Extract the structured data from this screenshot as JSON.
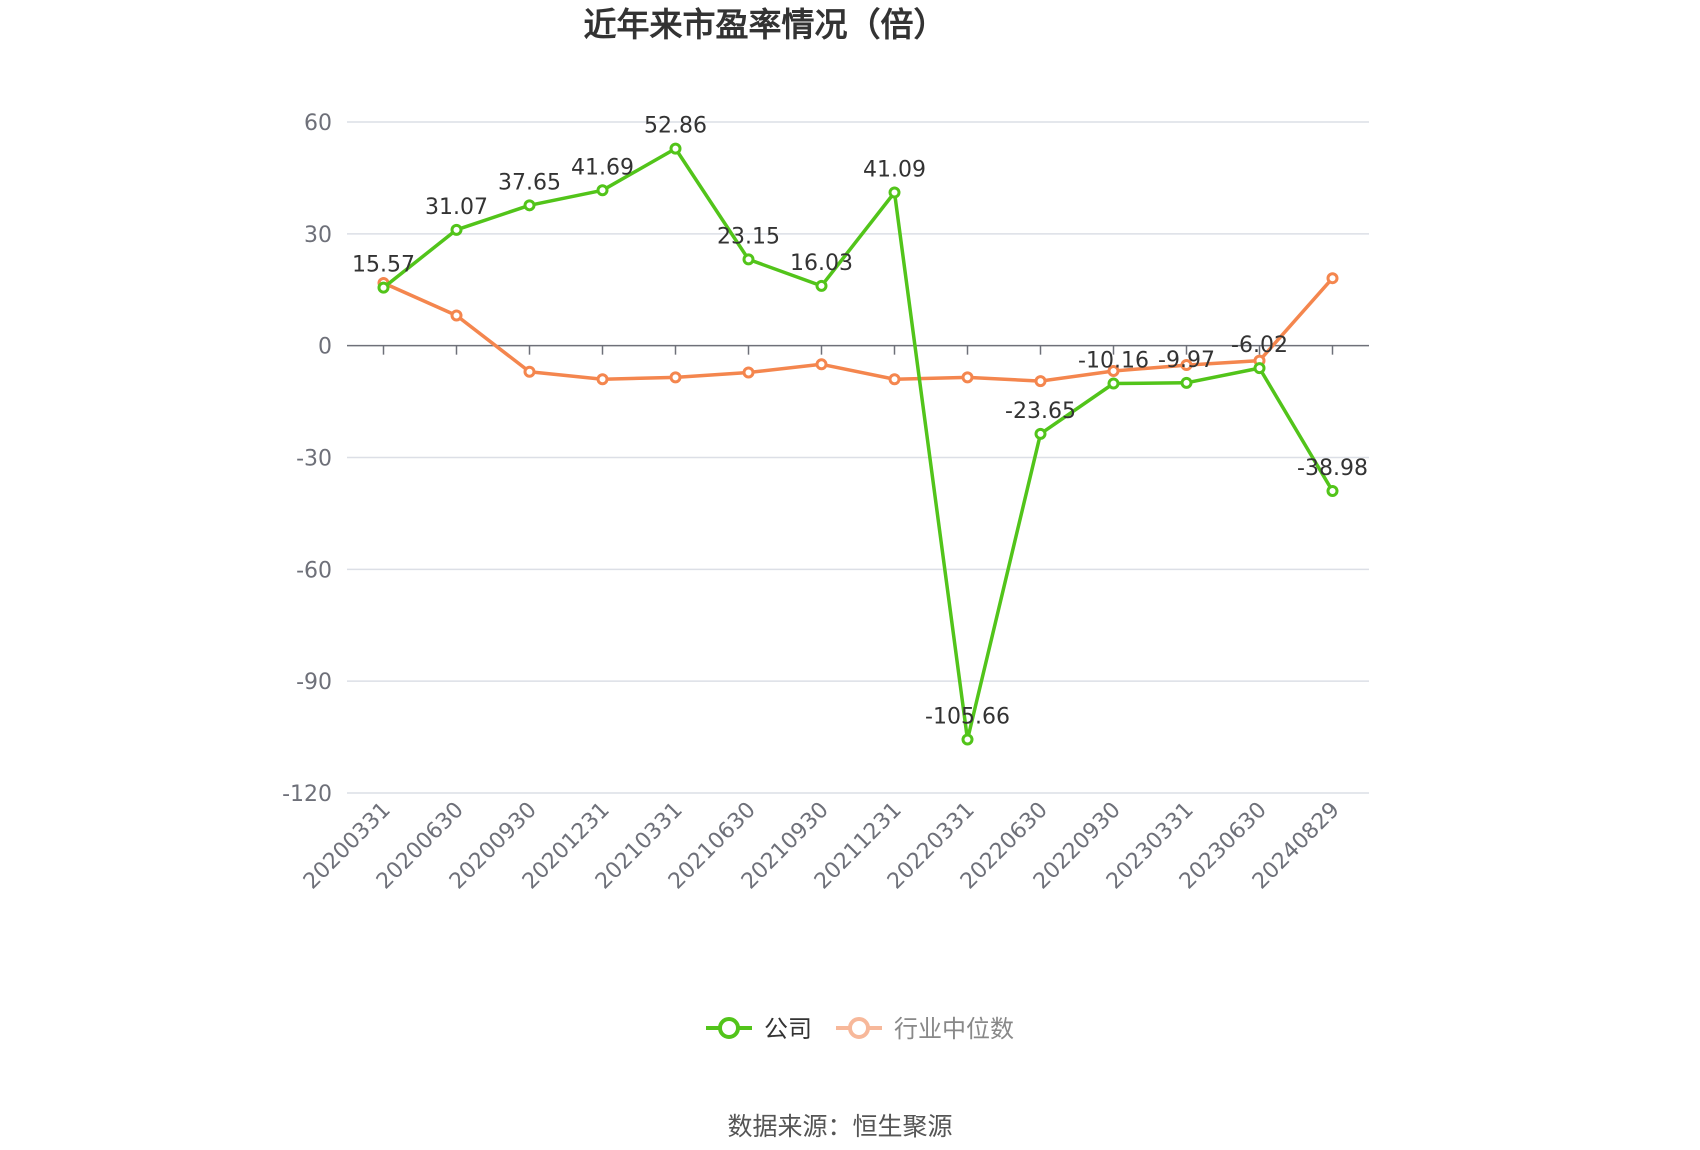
{
  "title": "近年来市盈率情况（倍）",
  "source": "数据来源：恒生聚源",
  "colors": {
    "company": "#52c41a",
    "industry": "#f4864e",
    "industry_legend": "#f7b89a",
    "grid": "#dcdfe6",
    "axis": "#6e7079"
  },
  "legend": {
    "company_label": "公司",
    "industry_label": "行业中位数"
  },
  "chart_data": {
    "type": "line",
    "title": "近年来市盈率情况（倍）",
    "xlabel": "",
    "ylabel": "",
    "ylim": [
      -120,
      60
    ],
    "yticks": [
      60,
      30,
      0,
      -30,
      -60,
      -90,
      -120
    ],
    "grid": true,
    "legend_position": "bottom-center",
    "categories": [
      "20200331",
      "20200630",
      "20200930",
      "20201231",
      "20210331",
      "20210630",
      "20210930",
      "20211231",
      "20220331",
      "20220630",
      "20220930",
      "20230331",
      "20230630",
      "20240829"
    ],
    "series": [
      {
        "name": "公司",
        "color": "#52c41a",
        "values": [
          15.57,
          31.07,
          37.65,
          41.69,
          52.86,
          23.15,
          16.03,
          41.09,
          -105.66,
          -23.65,
          -10.16,
          -9.97,
          -6.02,
          -38.98
        ],
        "labels": [
          "15.57",
          "31.07",
          "37.65",
          "41.69",
          "52.86",
          "23.15",
          "16.03",
          "41.09",
          "-105.66",
          "-23.65",
          "-10.16",
          "-9.97",
          "-6.02",
          "-38.98"
        ]
      },
      {
        "name": "行业中位数",
        "color": "#f4864e",
        "values": [
          16.8,
          8.1,
          -7.0,
          -9.0,
          -8.5,
          -7.2,
          -5.0,
          -9.0,
          -8.5,
          -9.5,
          -6.8,
          -5.2,
          -4.0,
          18.1
        ]
      }
    ]
  }
}
